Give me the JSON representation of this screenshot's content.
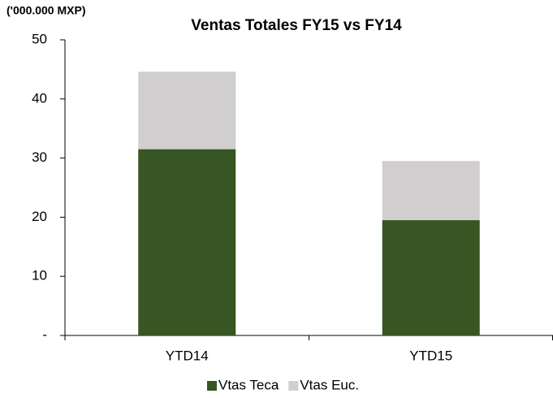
{
  "chart_data": {
    "type": "stacked_bar",
    "title": "Ventas Totales FY15 vs FY14",
    "y_label": "('000.000 MXP)",
    "categories": [
      "YTD14",
      "YTD15"
    ],
    "series": [
      {
        "name": "Vtas Teca",
        "color": "#375623",
        "values": [
          31.5,
          19.5
        ]
      },
      {
        "name": "Vtas Euc.",
        "color": "#d0cece",
        "values": [
          13.1,
          10.0
        ]
      }
    ],
    "ylim": [
      0,
      50
    ],
    "yticks": [
      {
        "value": 0,
        "label": "-"
      },
      10,
      20,
      30,
      40,
      50
    ],
    "legend": "bottom"
  }
}
